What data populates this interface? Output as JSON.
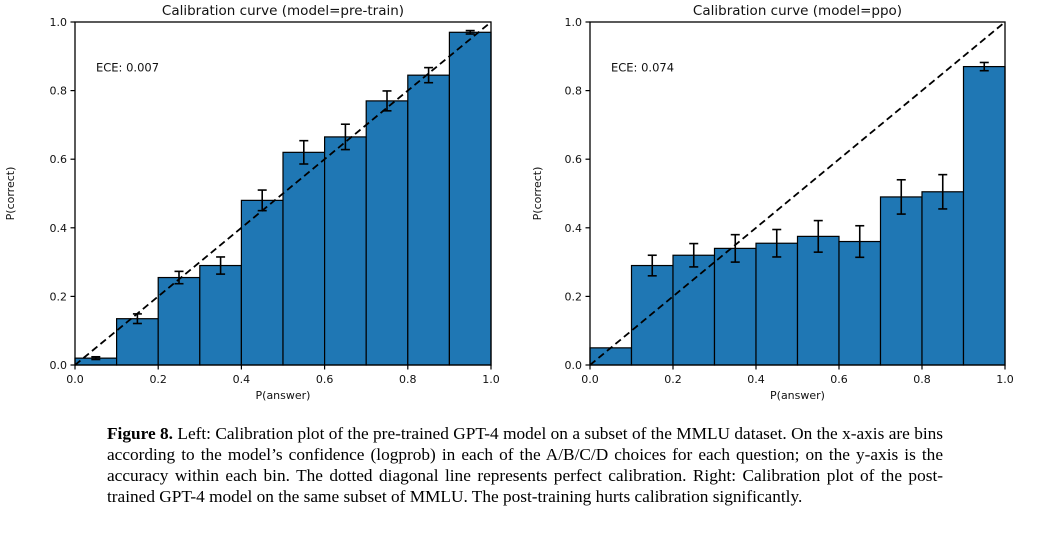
{
  "figure": {
    "caption_label": "Figure 8.",
    "caption_text": " Left: Calibration plot of the pre-trained GPT-4 model on a subset of the MMLU dataset. On the x-axis are bins according to the model’s confidence (logprob) in each of the A/B/C/D choices for each question; on the y-axis is the accuracy within each bin. The dotted diagonal line represents perfect calibration. Right: Calibration plot of the post-trained GPT-4 model on the same subset of MMLU. The post-training hurts calibration significantly."
  },
  "chart_data": [
    {
      "type": "bar",
      "title": "Calibration curve (model=pre-train)",
      "annotation": "ECE: 0.007",
      "xlabel": "P(answer)",
      "ylabel": "P(correct)",
      "xlim": [
        0.0,
        1.0
      ],
      "ylim": [
        0.0,
        1.0
      ],
      "xticks": [
        0.0,
        0.2,
        0.4,
        0.6,
        0.8,
        1.0
      ],
      "yticks": [
        0.0,
        0.2,
        0.4,
        0.6,
        0.8,
        1.0
      ],
      "xtick_labels": [
        "0.0",
        "0.2",
        "0.4",
        "0.6",
        "0.8",
        "1.0"
      ],
      "ytick_labels": [
        "0.0",
        "0.2",
        "0.4",
        "0.6",
        "0.8",
        "1.0"
      ],
      "bin_edges": [
        0.0,
        0.1,
        0.2,
        0.3,
        0.4,
        0.5,
        0.6,
        0.7,
        0.8,
        0.9,
        1.0
      ],
      "values": [
        0.02,
        0.135,
        0.255,
        0.29,
        0.48,
        0.62,
        0.665,
        0.77,
        0.845,
        0.97
      ],
      "errors": [
        0.004,
        0.014,
        0.018,
        0.025,
        0.03,
        0.034,
        0.037,
        0.029,
        0.022,
        0.005
      ],
      "bar_color": "#1f77b4",
      "bar_edge_color": "#000000",
      "text_color": "#111111",
      "diagonal_line": {
        "from": [
          0,
          0
        ],
        "to": [
          1,
          1
        ],
        "style": "dashed",
        "color": "#000000"
      },
      "grid": false,
      "legend": null
    },
    {
      "type": "bar",
      "title": "Calibration curve (model=ppo)",
      "annotation": "ECE: 0.074",
      "xlabel": "P(answer)",
      "ylabel": "P(correct)",
      "xlim": [
        0.0,
        1.0
      ],
      "ylim": [
        0.0,
        1.0
      ],
      "xticks": [
        0.0,
        0.2,
        0.4,
        0.6,
        0.8,
        1.0
      ],
      "yticks": [
        0.0,
        0.2,
        0.4,
        0.6,
        0.8,
        1.0
      ],
      "xtick_labels": [
        "0.0",
        "0.2",
        "0.4",
        "0.6",
        "0.8",
        "1.0"
      ],
      "ytick_labels": [
        "0.0",
        "0.2",
        "0.4",
        "0.6",
        "0.8",
        "1.0"
      ],
      "bin_edges": [
        0.0,
        0.1,
        0.2,
        0.3,
        0.4,
        0.5,
        0.6,
        0.7,
        0.8,
        0.9,
        1.0
      ],
      "values": [
        0.05,
        0.29,
        0.32,
        0.34,
        0.355,
        0.375,
        0.36,
        0.49,
        0.505,
        0.87
      ],
      "errors": [
        0,
        0.03,
        0.034,
        0.04,
        0.04,
        0.046,
        0.046,
        0.05,
        0.05,
        0.012
      ],
      "bar_color": "#1f77b4",
      "bar_edge_color": "#000000",
      "text_color": "#111111",
      "diagonal_line": {
        "from": [
          0,
          0
        ],
        "to": [
          1,
          1
        ],
        "style": "dashed",
        "color": "#000000"
      },
      "grid": false,
      "legend": null
    }
  ]
}
